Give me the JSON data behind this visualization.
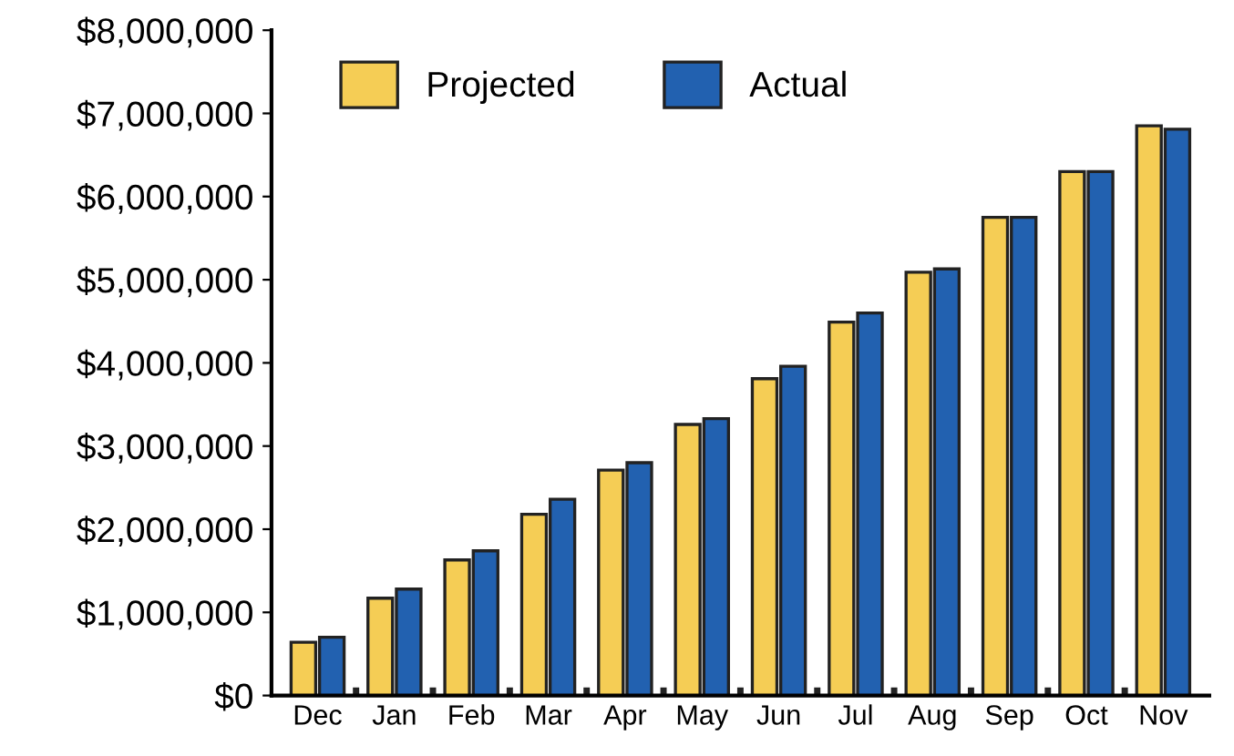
{
  "chart_data": {
    "type": "bar",
    "categories": [
      "Dec",
      "Jan",
      "Feb",
      "Mar",
      "Apr",
      "May",
      "Jun",
      "Jul",
      "Aug",
      "Sep",
      "Oct",
      "Nov"
    ],
    "series": [
      {
        "name": "Projected",
        "color": "#f5cd55",
        "values": [
          640000,
          1170000,
          1630000,
          2180000,
          2710000,
          3260000,
          3810000,
          4490000,
          5090000,
          5750000,
          6300000,
          6850000
        ]
      },
      {
        "name": "Actual",
        "color": "#2261b0",
        "values": [
          700000,
          1280000,
          1740000,
          2360000,
          2800000,
          3330000,
          3960000,
          4600000,
          5130000,
          5750000,
          6300000,
          6810000
        ]
      }
    ],
    "ylim": [
      0,
      8000000
    ],
    "yticks": [
      {
        "value": 0,
        "label": "$0"
      },
      {
        "value": 1000000,
        "label": "$1,000,000"
      },
      {
        "value": 2000000,
        "label": "$2,000,000"
      },
      {
        "value": 3000000,
        "label": "$3,000,000"
      },
      {
        "value": 4000000,
        "label": "$4,000,000"
      },
      {
        "value": 5000000,
        "label": "$5,000,000"
      },
      {
        "value": 6000000,
        "label": "$6,000,000"
      },
      {
        "value": 7000000,
        "label": "$7,000,000"
      },
      {
        "value": 8000000,
        "label": "$8,000,000"
      }
    ],
    "grid": false,
    "legend": "top"
  }
}
